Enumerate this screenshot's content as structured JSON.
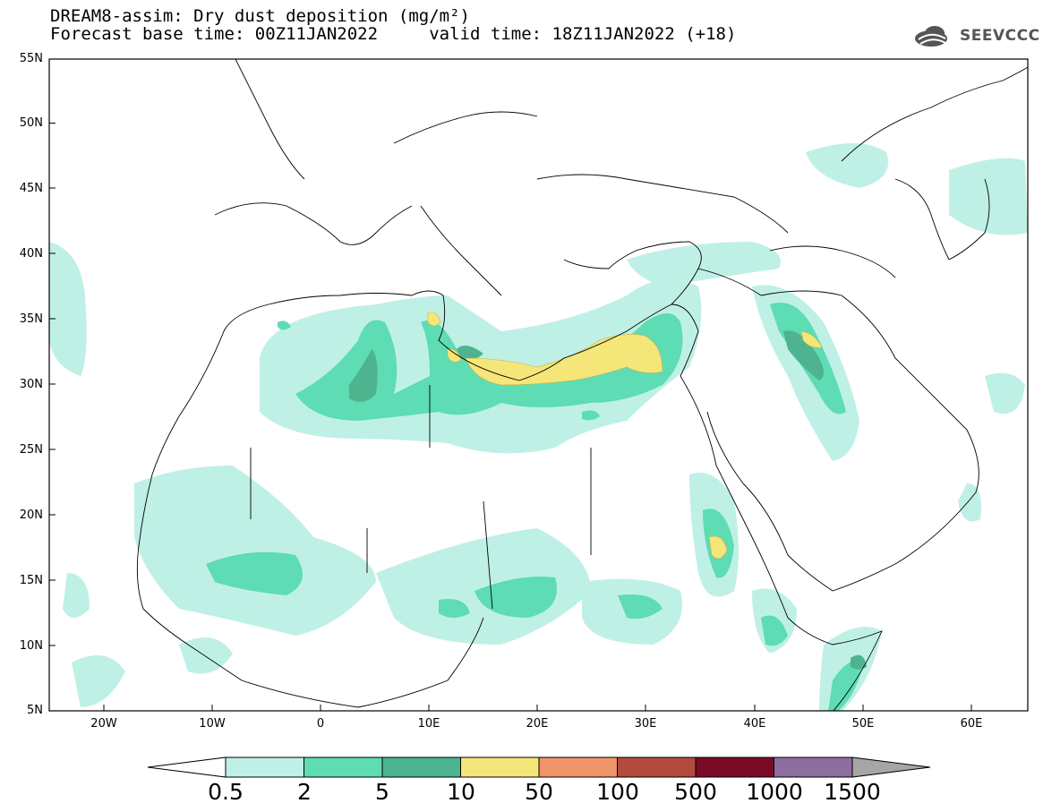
{
  "title_line1": "DREAM8-assim: Dry dust deposition (mg/m²)",
  "title_line2": "Forecast base time: 00Z11JAN2022     valid time: 18Z11JAN2022 (+18)",
  "logo_text": "SEEVCCC",
  "logo_icon": "cloud-icon",
  "lat_ticks": [
    "55N",
    "50N",
    "45N",
    "40N",
    "35N",
    "30N",
    "25N",
    "20N",
    "15N",
    "10N",
    "5N"
  ],
  "lon_ticks": [
    "20W",
    "10W",
    "0",
    "10E",
    "20E",
    "30E",
    "40E",
    "50E",
    "60E"
  ],
  "colorbar": {
    "labels": [
      "0.5",
      "2",
      "5",
      "10",
      "50",
      "100",
      "500",
      "1000",
      "1500"
    ],
    "colors": [
      "#bff0e6",
      "#5edcb4",
      "#4db48f",
      "#f5e67a",
      "#ee956a",
      "#b34a3e",
      "#7a0a26",
      "#8e6e9e",
      "#a6a6a6"
    ],
    "under_color": "#ffffff",
    "over_color": "#a6a6a6"
  },
  "map": {
    "lon_range": [
      -25,
      65
    ],
    "lat_range": [
      5,
      55
    ],
    "background": "#ffffff",
    "land_outline": "#000000"
  }
}
